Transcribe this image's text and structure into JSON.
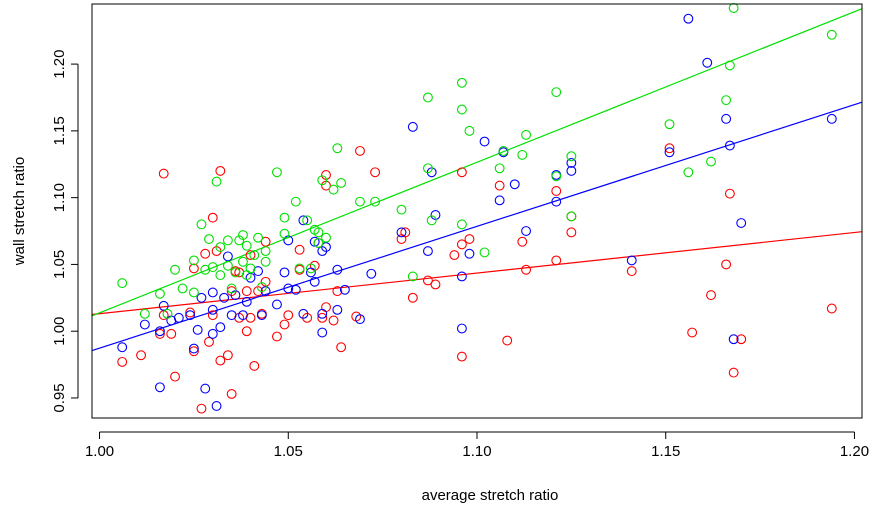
{
  "chart_data": {
    "type": "scatter",
    "title": "",
    "xlabel": "average stretch ratio",
    "ylabel": "wall stretch ratio",
    "xlim": [
      0.998,
      1.202
    ],
    "ylim": [
      0.935,
      1.245
    ],
    "x_ticks": [
      1.0,
      1.05,
      1.1,
      1.15,
      1.2
    ],
    "x_tick_labels": [
      "1.00",
      "1.05",
      "1.10",
      "1.15",
      "1.20"
    ],
    "y_ticks": [
      0.95,
      1.0,
      1.05,
      1.1,
      1.15,
      1.2
    ],
    "y_tick_labels": [
      "0.95",
      "1.00",
      "1.05",
      "1.10",
      "1.15",
      "1.20"
    ],
    "grid": false,
    "legend": "none",
    "series": [
      {
        "color": "#ff0000",
        "points": [
          [
            1.006,
            0.977
          ],
          [
            1.011,
            0.982
          ],
          [
            1.016,
            0.998
          ],
          [
            1.017,
            1.012
          ],
          [
            1.017,
            1.118
          ],
          [
            1.019,
            0.998
          ],
          [
            1.02,
            0.966
          ],
          [
            1.024,
            1.014
          ],
          [
            1.025,
            0.985
          ],
          [
            1.025,
            1.047
          ],
          [
            1.027,
            0.942
          ],
          [
            1.028,
            1.058
          ],
          [
            1.029,
            0.992
          ],
          [
            1.03,
            1.012
          ],
          [
            1.03,
            1.085
          ],
          [
            1.031,
            1.06
          ],
          [
            1.032,
            0.978
          ],
          [
            1.032,
            1.12
          ],
          [
            1.034,
            0.982
          ],
          [
            1.035,
            0.953
          ],
          [
            1.035,
            1.03
          ],
          [
            1.036,
            1.045
          ],
          [
            1.037,
            1.01
          ],
          [
            1.037,
            1.044
          ],
          [
            1.039,
            1.0
          ],
          [
            1.039,
            1.03
          ],
          [
            1.04,
            1.01
          ],
          [
            1.04,
            1.057
          ],
          [
            1.041,
            0.974
          ],
          [
            1.042,
            1.03
          ],
          [
            1.043,
            1.013
          ],
          [
            1.044,
            1.037
          ],
          [
            1.044,
            1.067
          ],
          [
            1.047,
            0.996
          ],
          [
            1.049,
            1.005
          ],
          [
            1.05,
            1.012
          ],
          [
            1.053,
            1.046
          ],
          [
            1.053,
            1.061
          ],
          [
            1.055,
            1.01
          ],
          [
            1.057,
            1.049
          ],
          [
            1.058,
            1.066
          ],
          [
            1.059,
            1.01
          ],
          [
            1.06,
            1.018
          ],
          [
            1.06,
            1.109
          ],
          [
            1.06,
            1.117
          ],
          [
            1.062,
            1.008
          ],
          [
            1.063,
            1.03
          ],
          [
            1.064,
            0.988
          ],
          [
            1.068,
            1.011
          ],
          [
            1.069,
            1.135
          ],
          [
            1.073,
            1.119
          ],
          [
            1.08,
            1.069
          ],
          [
            1.081,
            1.074
          ],
          [
            1.083,
            1.025
          ],
          [
            1.087,
            1.038
          ],
          [
            1.089,
            1.035
          ],
          [
            1.094,
            1.057
          ],
          [
            1.096,
            1.065
          ],
          [
            1.096,
            1.119
          ],
          [
            1.096,
            0.981
          ],
          [
            1.098,
            1.069
          ],
          [
            1.106,
            1.109
          ],
          [
            1.108,
            0.993
          ],
          [
            1.112,
            1.067
          ],
          [
            1.113,
            1.046
          ],
          [
            1.121,
            1.053
          ],
          [
            1.121,
            1.105
          ],
          [
            1.125,
            1.074
          ],
          [
            1.125,
            1.086
          ],
          [
            1.141,
            1.045
          ],
          [
            1.151,
            1.137
          ],
          [
            1.157,
            0.999
          ],
          [
            1.162,
            1.027
          ],
          [
            1.166,
            1.05
          ],
          [
            1.167,
            1.103
          ],
          [
            1.168,
            0.969
          ],
          [
            1.17,
            0.994
          ],
          [
            1.194,
            1.017
          ]
        ]
      },
      {
        "color": "#0000ff",
        "points": [
          [
            1.006,
            0.988
          ],
          [
            1.012,
            1.005
          ],
          [
            1.016,
            0.958
          ],
          [
            1.016,
            1.0
          ],
          [
            1.017,
            1.019
          ],
          [
            1.019,
            1.008
          ],
          [
            1.021,
            1.01
          ],
          [
            1.024,
            1.012
          ],
          [
            1.025,
            0.987
          ],
          [
            1.026,
            1.001
          ],
          [
            1.027,
            1.025
          ],
          [
            1.028,
            0.957
          ],
          [
            1.03,
            0.998
          ],
          [
            1.03,
            1.016
          ],
          [
            1.03,
            1.029
          ],
          [
            1.031,
            0.944
          ],
          [
            1.032,
            1.003
          ],
          [
            1.033,
            1.025
          ],
          [
            1.034,
            1.056
          ],
          [
            1.035,
            1.012
          ],
          [
            1.036,
            1.027
          ],
          [
            1.038,
            1.012
          ],
          [
            1.039,
            1.022
          ],
          [
            1.04,
            1.04
          ],
          [
            1.042,
            1.045
          ],
          [
            1.043,
            1.012
          ],
          [
            1.044,
            1.03
          ],
          [
            1.047,
            1.02
          ],
          [
            1.049,
            1.044
          ],
          [
            1.05,
            1.032
          ],
          [
            1.05,
            1.068
          ],
          [
            1.052,
            1.031
          ],
          [
            1.054,
            1.013
          ],
          [
            1.054,
            1.083
          ],
          [
            1.056,
            1.044
          ],
          [
            1.057,
            1.037
          ],
          [
            1.057,
            1.067
          ],
          [
            1.059,
            0.999
          ],
          [
            1.059,
            1.013
          ],
          [
            1.059,
            1.06
          ],
          [
            1.06,
            1.063
          ],
          [
            1.063,
            1.046
          ],
          [
            1.063,
            1.016
          ],
          [
            1.065,
            1.031
          ],
          [
            1.069,
            1.009
          ],
          [
            1.072,
            1.043
          ],
          [
            1.08,
            1.074
          ],
          [
            1.083,
            1.153
          ],
          [
            1.087,
            1.06
          ],
          [
            1.088,
            1.119
          ],
          [
            1.089,
            1.087
          ],
          [
            1.096,
            1.041
          ],
          [
            1.096,
            1.002
          ],
          [
            1.098,
            1.058
          ],
          [
            1.102,
            1.142
          ],
          [
            1.106,
            1.098
          ],
          [
            1.107,
            1.134
          ],
          [
            1.11,
            1.11
          ],
          [
            1.113,
            1.075
          ],
          [
            1.121,
            1.097
          ],
          [
            1.121,
            1.117
          ],
          [
            1.125,
            1.126
          ],
          [
            1.125,
            1.12
          ],
          [
            1.141,
            1.053
          ],
          [
            1.151,
            1.134
          ],
          [
            1.156,
            1.234
          ],
          [
            1.161,
            1.201
          ],
          [
            1.166,
            1.159
          ],
          [
            1.167,
            1.139
          ],
          [
            1.168,
            0.994
          ],
          [
            1.17,
            1.081
          ],
          [
            1.194,
            1.159
          ]
        ]
      },
      {
        "color": "#00e000",
        "points": [
          [
            1.006,
            1.036
          ],
          [
            1.012,
            1.013
          ],
          [
            1.016,
            1.028
          ],
          [
            1.018,
            1.013
          ],
          [
            1.02,
            1.046
          ],
          [
            1.022,
            1.032
          ],
          [
            1.025,
            1.029
          ],
          [
            1.025,
            1.053
          ],
          [
            1.027,
            1.08
          ],
          [
            1.028,
            1.046
          ],
          [
            1.029,
            1.069
          ],
          [
            1.03,
            1.048
          ],
          [
            1.031,
            1.112
          ],
          [
            1.032,
            1.042
          ],
          [
            1.032,
            1.063
          ],
          [
            1.034,
            1.068
          ],
          [
            1.034,
            1.049
          ],
          [
            1.035,
            1.032
          ],
          [
            1.036,
            1.044
          ],
          [
            1.037,
            1.068
          ],
          [
            1.038,
            1.072
          ],
          [
            1.038,
            1.052
          ],
          [
            1.039,
            1.042
          ],
          [
            1.039,
            1.064
          ],
          [
            1.04,
            1.047
          ],
          [
            1.041,
            1.057
          ],
          [
            1.042,
            1.07
          ],
          [
            1.043,
            1.033
          ],
          [
            1.044,
            1.06
          ],
          [
            1.044,
            1.052
          ],
          [
            1.047,
            1.119
          ],
          [
            1.049,
            1.085
          ],
          [
            1.049,
            1.073
          ],
          [
            1.052,
            1.097
          ],
          [
            1.053,
            1.047
          ],
          [
            1.055,
            1.083
          ],
          [
            1.056,
            1.047
          ],
          [
            1.057,
            1.076
          ],
          [
            1.058,
            1.074
          ],
          [
            1.058,
            1.066
          ],
          [
            1.059,
            1.113
          ],
          [
            1.06,
            1.07
          ],
          [
            1.062,
            1.106
          ],
          [
            1.063,
            1.137
          ],
          [
            1.064,
            1.111
          ],
          [
            1.069,
            1.097
          ],
          [
            1.073,
            1.097
          ],
          [
            1.08,
            1.091
          ],
          [
            1.083,
            1.041
          ],
          [
            1.087,
            1.122
          ],
          [
            1.087,
            1.175
          ],
          [
            1.088,
            1.083
          ],
          [
            1.096,
            1.186
          ],
          [
            1.096,
            1.166
          ],
          [
            1.096,
            1.08
          ],
          [
            1.098,
            1.15
          ],
          [
            1.102,
            1.059
          ],
          [
            1.106,
            1.122
          ],
          [
            1.107,
            1.135
          ],
          [
            1.112,
            1.132
          ],
          [
            1.113,
            1.147
          ],
          [
            1.121,
            1.179
          ],
          [
            1.121,
            1.116
          ],
          [
            1.125,
            1.131
          ],
          [
            1.125,
            1.086
          ],
          [
            1.151,
            1.155
          ],
          [
            1.156,
            1.119
          ],
          [
            1.162,
            1.127
          ],
          [
            1.166,
            1.173
          ],
          [
            1.167,
            1.199
          ],
          [
            1.168,
            1.242
          ],
          [
            1.194,
            1.222
          ]
        ]
      }
    ],
    "fit_lines": [
      {
        "color": "#ff0000",
        "x": [
          0.998,
          1.202
        ],
        "y": [
          1.0125,
          1.0745
        ]
      },
      {
        "color": "#0000ff",
        "x": [
          0.998,
          1.202
        ],
        "y": [
          0.9855,
          1.1715
        ]
      },
      {
        "color": "#00e000",
        "x": [
          0.998,
          1.202
        ],
        "y": [
          1.0115,
          1.2415
        ]
      }
    ]
  }
}
